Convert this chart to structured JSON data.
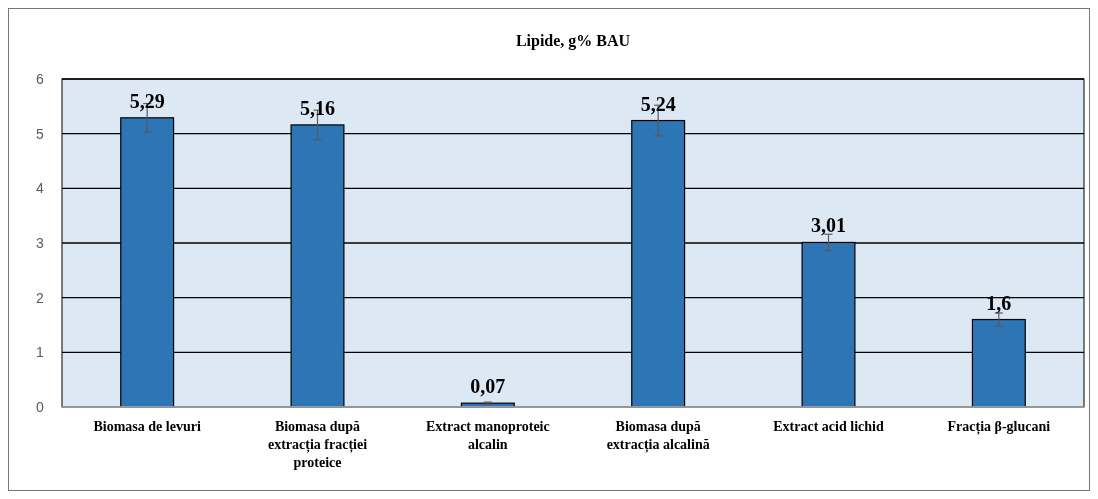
{
  "chart_data": {
    "type": "bar",
    "title": "Lipide, g% BAU",
    "categories": [
      "Biomasa de levuri",
      "Biomasa după extracția fracției proteice",
      "Extract manoproteic alcalin",
      "Biomasa după extracția alcalină",
      "Extract acid lichid",
      "Fracția β-glucani"
    ],
    "values": [
      5.29,
      5.16,
      0.07,
      5.24,
      3.01,
      1.6
    ],
    "errors": [
      0.26,
      0.27,
      0.02,
      0.28,
      0.15,
      0.12
    ],
    "color": "#2e75b6",
    "value_labels": [
      "5,29",
      "5,16",
      "0,07",
      "5,24",
      "3,01",
      "1,6"
    ],
    "ylim": [
      0,
      6
    ],
    "yticks": [
      0,
      1,
      2,
      3,
      4,
      5,
      6
    ],
    "grid": "y"
  }
}
